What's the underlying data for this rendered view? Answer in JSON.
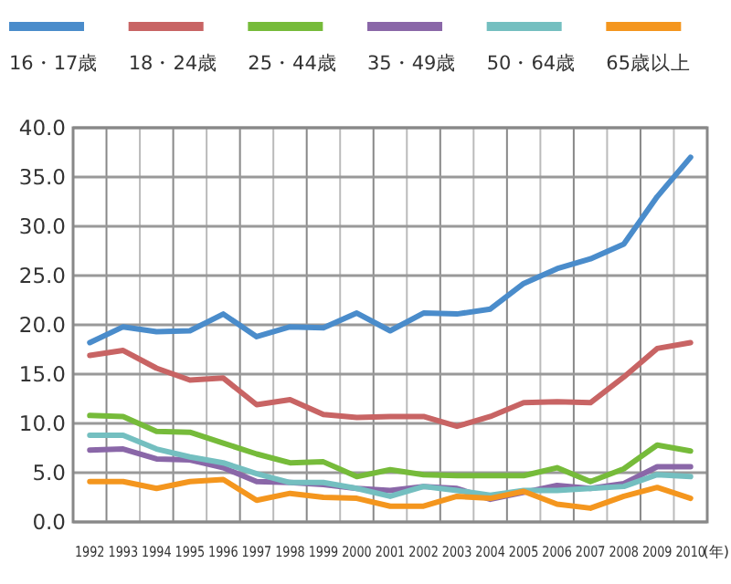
{
  "chart_data": {
    "type": "line",
    "xlabel": "(年)",
    "categories": [
      "1992",
      "1993",
      "1994",
      "1995",
      "1996",
      "1997",
      "1998",
      "1999",
      "2000",
      "2001",
      "2002",
      "2003",
      "2004",
      "2005",
      "2006",
      "2007",
      "2008",
      "2009",
      "2010"
    ],
    "series": [
      {
        "name": "16・17歳",
        "color": "#4a8ccb",
        "values": [
          18.2,
          19.8,
          19.3,
          19.4,
          21.1,
          18.8,
          19.8,
          19.7,
          21.2,
          19.4,
          21.2,
          21.1,
          21.6,
          24.2,
          25.7,
          26.7,
          28.2,
          33.0,
          37.0
        ]
      },
      {
        "name": "18・24歳",
        "color": "#c86464",
        "values": [
          16.9,
          17.4,
          15.6,
          14.4,
          14.6,
          11.9,
          12.4,
          10.9,
          10.6,
          10.7,
          10.7,
          9.7,
          10.7,
          12.1,
          12.2,
          12.1,
          14.7,
          17.6,
          18.2
        ]
      },
      {
        "name": "25・44歳",
        "color": "#76bb3a",
        "values": [
          10.8,
          10.7,
          9.2,
          9.1,
          8.0,
          6.9,
          6.0,
          6.1,
          4.6,
          5.3,
          4.8,
          4.7,
          4.7,
          4.7,
          5.5,
          4.1,
          5.4,
          7.8,
          7.2
        ]
      },
      {
        "name": "35・49歳",
        "color": "#8a67a8",
        "values": [
          7.3,
          7.4,
          6.4,
          6.3,
          5.5,
          4.1,
          4.0,
          3.8,
          3.4,
          3.2,
          3.6,
          3.4,
          2.3,
          3.0,
          3.7,
          3.4,
          3.9,
          5.6,
          5.6
        ]
      },
      {
        "name": "50・64歳",
        "color": "#74bfc0",
        "values": [
          8.8,
          8.8,
          7.4,
          6.6,
          6.0,
          4.9,
          4.0,
          4.0,
          3.4,
          2.6,
          3.6,
          3.2,
          2.7,
          3.2,
          3.2,
          3.4,
          3.6,
          4.8,
          4.6
        ]
      },
      {
        "name": "65歳以上",
        "color": "#f4961e",
        "values": [
          4.1,
          4.1,
          3.4,
          4.1,
          4.3,
          2.2,
          2.9,
          2.5,
          2.4,
          1.6,
          1.6,
          2.6,
          2.4,
          3.1,
          1.8,
          1.4,
          2.6,
          3.5,
          2.4
        ]
      }
    ],
    "ylim": [
      0,
      40
    ],
    "yticks": [
      {
        "value": 0,
        "label": "0.0"
      },
      {
        "value": 5,
        "label": "5.0"
      },
      {
        "value": 10,
        "label": "10.0"
      },
      {
        "value": 15,
        "label": "15.0"
      },
      {
        "value": 20,
        "label": "20.0"
      },
      {
        "value": 25,
        "label": "25.0"
      },
      {
        "value": 30,
        "label": "30.0"
      },
      {
        "value": 35,
        "label": "35.0"
      },
      {
        "value": 40,
        "label": "40.0"
      }
    ],
    "grid": true,
    "legend": "top",
    "marker": "none",
    "line_style": "solid"
  }
}
